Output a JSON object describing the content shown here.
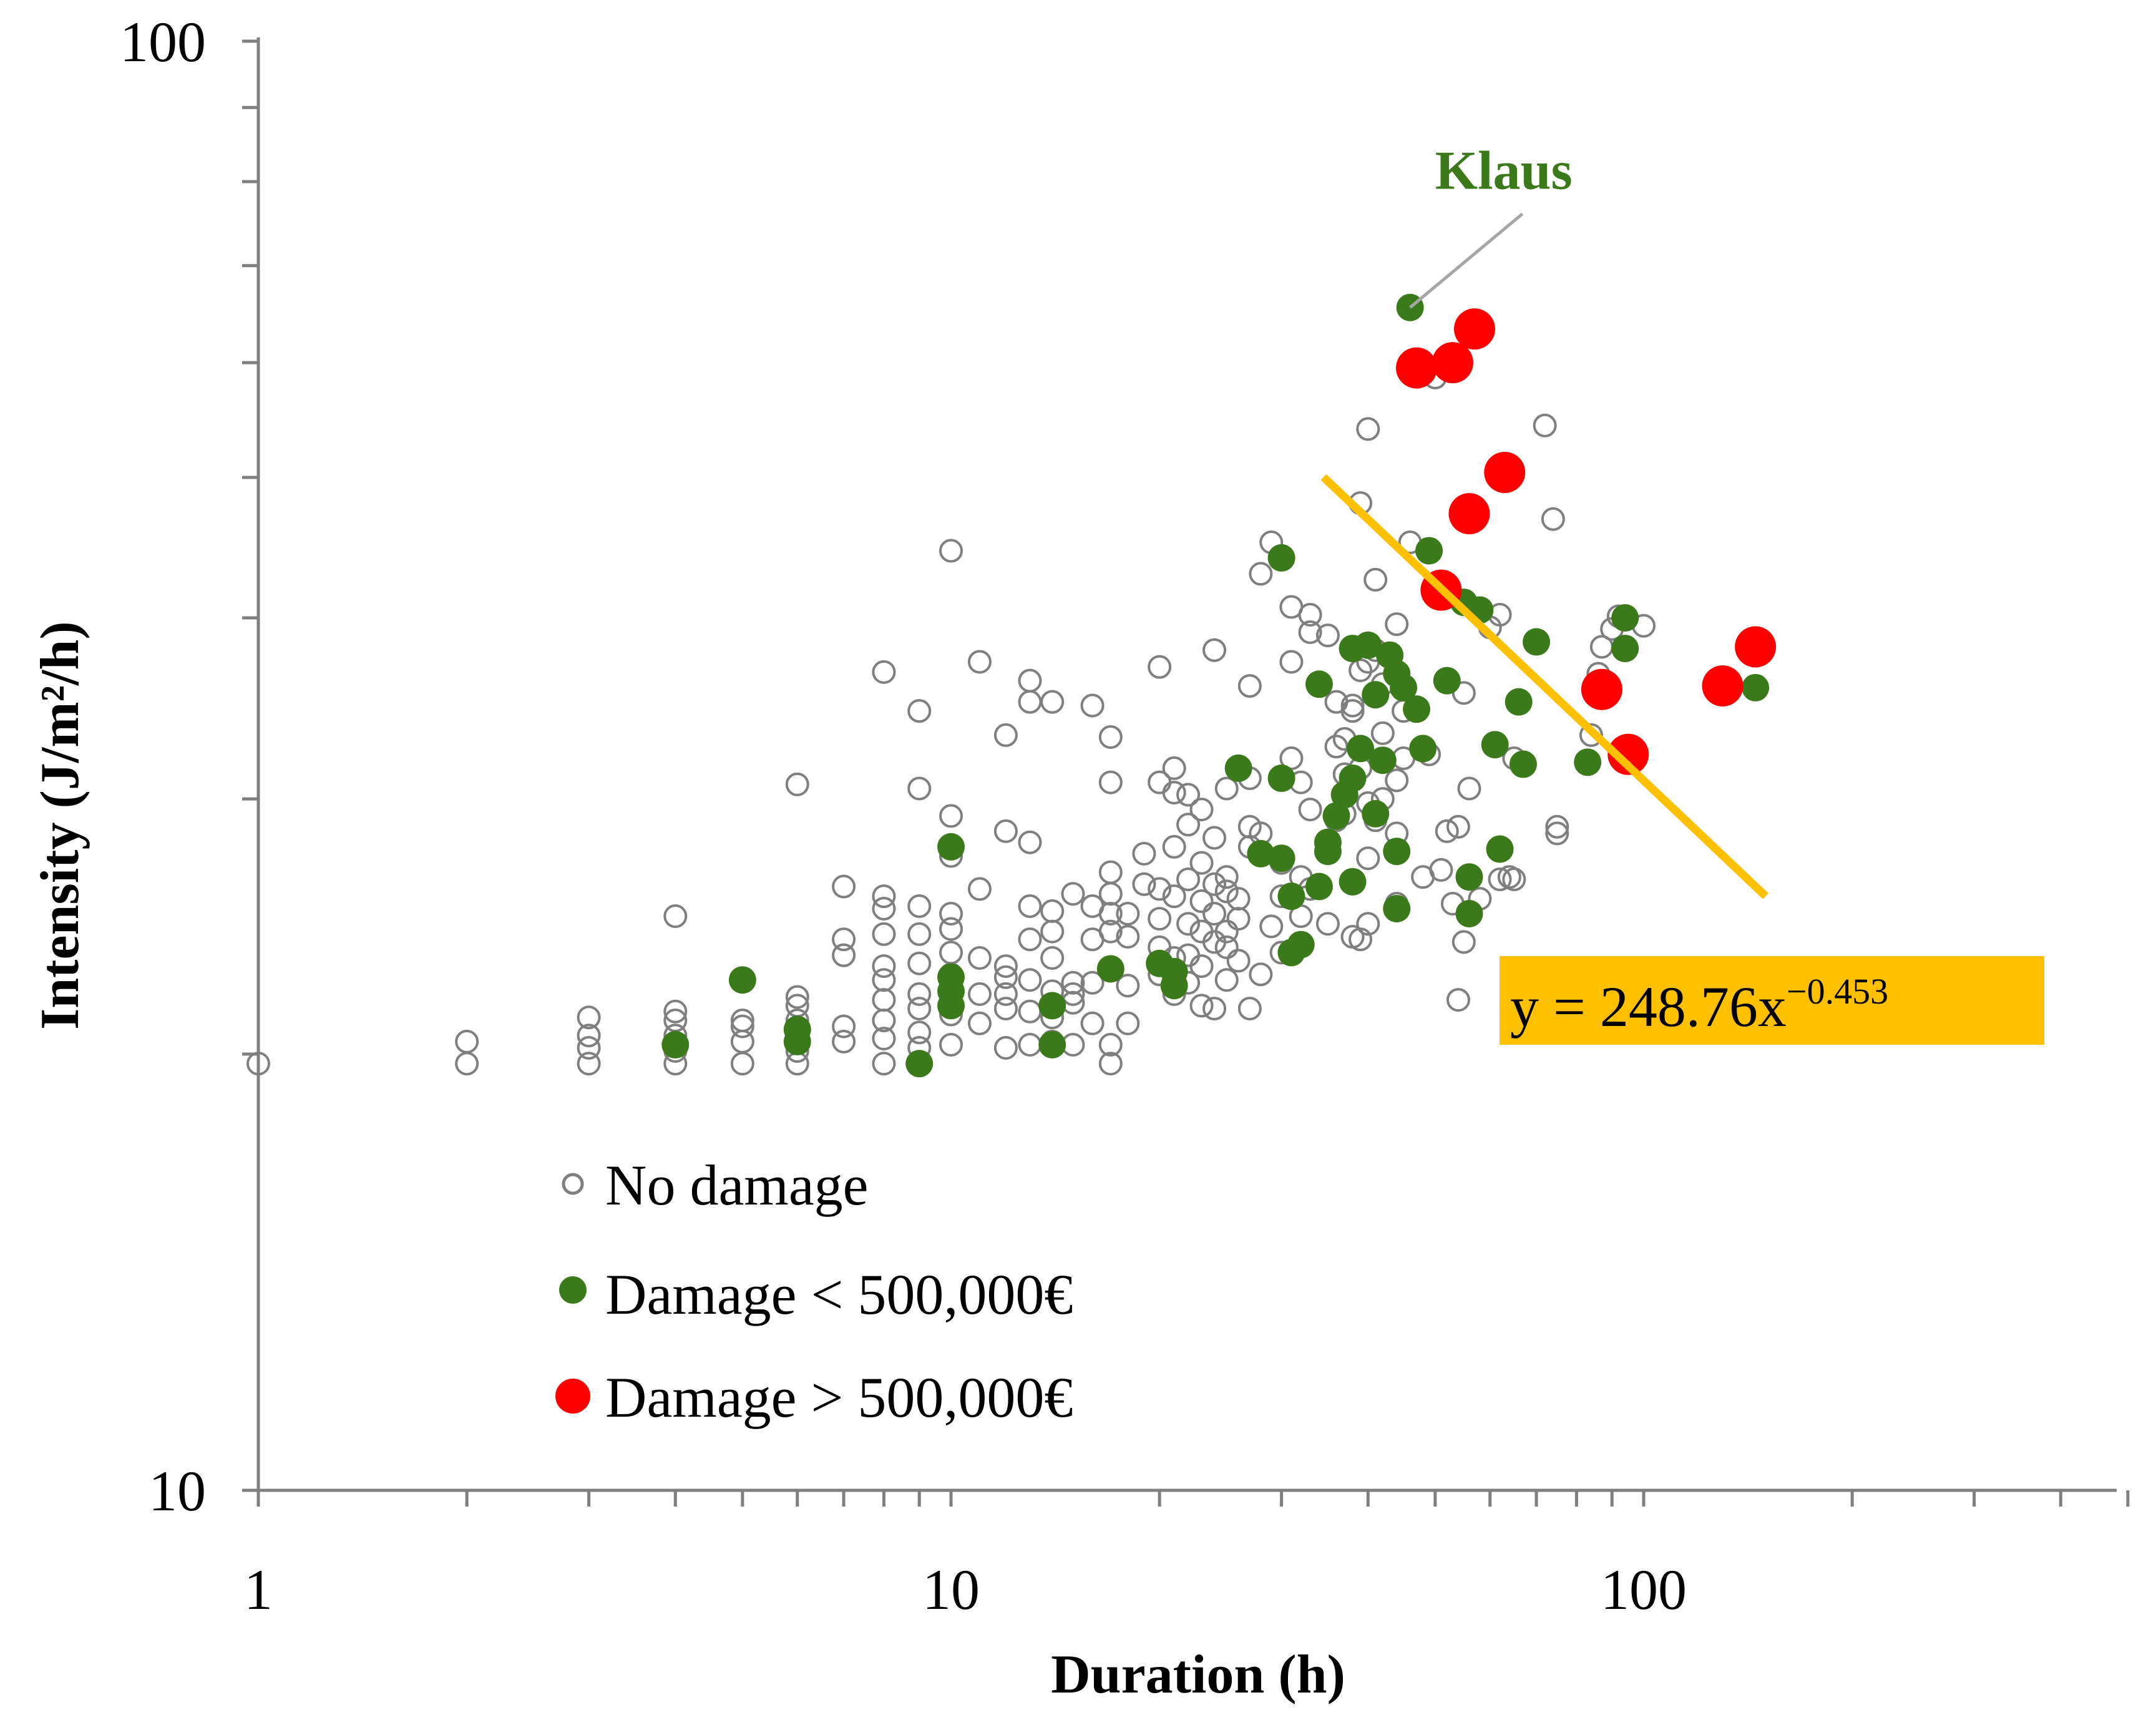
{
  "chart_data": {
    "type": "scatter",
    "xlabel": "Duration (h)",
    "ylabel": "Intensity (J/m²/h)",
    "xscale": "log",
    "yscale": "log",
    "xlim": [
      1,
      700
    ],
    "ylim": [
      10,
      100
    ],
    "x_tick_labels": [
      "1",
      "10",
      "100"
    ],
    "y_tick_labels": [
      "10",
      "100"
    ],
    "grid": false,
    "legend_position": "lower-left",
    "colors": {
      "no_damage": "#7f7f7f",
      "damage_low": "#3a7a1a",
      "damage_high": "#ff0000",
      "trend": "#ffc000",
      "annotation": "#3a7a1a"
    },
    "series": [
      {
        "name": "No damage",
        "marker": "hollow-circle",
        "points": [
          [
            1,
            19.7
          ],
          [
            2,
            19.7
          ],
          [
            2,
            20.4
          ],
          [
            3,
            19.7
          ],
          [
            3,
            20.2
          ],
          [
            3,
            20.6
          ],
          [
            3,
            21.2
          ],
          [
            4,
            19.7
          ],
          [
            4,
            20.1
          ],
          [
            4,
            20.6
          ],
          [
            4,
            21.1
          ],
          [
            4,
            21.4
          ],
          [
            4,
            24.9
          ],
          [
            5,
            19.7
          ],
          [
            5,
            20.4
          ],
          [
            5,
            20.9
          ],
          [
            5,
            21.1
          ],
          [
            6,
            19.7
          ],
          [
            6,
            20.1
          ],
          [
            6,
            20.6
          ],
          [
            6,
            21.1
          ],
          [
            6,
            21.6
          ],
          [
            6,
            21.9
          ],
          [
            6,
            30.7
          ],
          [
            7,
            20.4
          ],
          [
            7,
            20.9
          ],
          [
            7,
            23.4
          ],
          [
            7,
            24.0
          ],
          [
            7,
            26.1
          ],
          [
            8,
            19.7
          ],
          [
            8,
            20.5
          ],
          [
            8,
            21.1
          ],
          [
            8,
            21.8
          ],
          [
            8,
            22.5
          ],
          [
            8,
            23.0
          ],
          [
            8,
            24.2
          ],
          [
            8,
            25.2
          ],
          [
            8,
            25.7
          ],
          [
            8,
            36.7
          ],
          [
            9,
            20.2
          ],
          [
            9,
            20.7
          ],
          [
            9,
            21.5
          ],
          [
            9,
            22.0
          ],
          [
            9,
            23.1
          ],
          [
            9,
            24.2
          ],
          [
            9,
            25.3
          ],
          [
            9,
            30.5
          ],
          [
            9,
            34.5
          ],
          [
            10,
            20.3
          ],
          [
            10,
            21.3
          ],
          [
            10,
            22.7
          ],
          [
            10,
            23.5
          ],
          [
            10,
            24.4
          ],
          [
            10,
            25.0
          ],
          [
            10,
            27.4
          ],
          [
            10,
            29.2
          ],
          [
            10,
            44.5
          ],
          [
            11,
            21.0
          ],
          [
            11,
            22.0
          ],
          [
            11,
            23.3
          ],
          [
            11,
            26.0
          ],
          [
            11,
            37.3
          ],
          [
            12,
            20.2
          ],
          [
            12,
            21.5
          ],
          [
            12,
            22.0
          ],
          [
            12,
            22.6
          ],
          [
            12,
            23.0
          ],
          [
            12,
            28.5
          ],
          [
            12,
            33.2
          ],
          [
            13,
            20.3
          ],
          [
            13,
            21.4
          ],
          [
            13,
            22.5
          ],
          [
            13,
            24.0
          ],
          [
            13,
            25.3
          ],
          [
            13,
            28.0
          ],
          [
            13,
            35.0
          ],
          [
            13,
            36.2
          ],
          [
            14,
            20.4
          ],
          [
            14,
            21.2
          ],
          [
            14,
            22.1
          ],
          [
            14,
            23.3
          ],
          [
            14,
            24.3
          ],
          [
            14,
            25.1
          ],
          [
            14,
            35.0
          ],
          [
            15,
            20.3
          ],
          [
            15,
            21.7
          ],
          [
            15,
            22.0
          ],
          [
            15,
            22.4
          ],
          [
            15,
            25.8
          ],
          [
            16,
            21.0
          ],
          [
            16,
            22.4
          ],
          [
            16,
            24.0
          ],
          [
            16,
            25.3
          ],
          [
            16,
            34.8
          ],
          [
            17,
            19.7
          ],
          [
            17,
            20.3
          ],
          [
            17,
            24.3
          ],
          [
            17,
            25.0
          ],
          [
            17,
            25.8
          ],
          [
            17,
            26.7
          ],
          [
            17,
            30.8
          ],
          [
            17,
            33.1
          ],
          [
            18,
            21.0
          ],
          [
            18,
            22.3
          ],
          [
            18,
            24.1
          ],
          [
            18,
            25.0
          ],
          [
            19,
            26.2
          ],
          [
            19,
            27.5
          ],
          [
            20,
            22.7
          ],
          [
            20,
            23.7
          ],
          [
            20,
            24.8
          ],
          [
            20,
            26.0
          ],
          [
            20,
            30.8
          ],
          [
            20,
            37.0
          ],
          [
            21,
            22.0
          ],
          [
            21,
            23.3
          ],
          [
            21,
            25.7
          ],
          [
            21,
            27.8
          ],
          [
            21,
            30.3
          ],
          [
            21,
            31.5
          ],
          [
            22,
            22.4
          ],
          [
            22,
            23.4
          ],
          [
            22,
            24.6
          ],
          [
            22,
            26.4
          ],
          [
            22,
            28.8
          ],
          [
            22,
            30.2
          ],
          [
            23,
            21.6
          ],
          [
            23,
            23.0
          ],
          [
            23,
            24.3
          ],
          [
            23,
            25.5
          ],
          [
            23,
            27.1
          ],
          [
            23,
            29.5
          ],
          [
            24,
            21.5
          ],
          [
            24,
            23.9
          ],
          [
            24,
            25.0
          ],
          [
            24,
            26.2
          ],
          [
            24,
            28.2
          ],
          [
            24,
            38.0
          ],
          [
            25,
            22.5
          ],
          [
            25,
            23.7
          ],
          [
            25,
            24.3
          ],
          [
            25,
            25.9
          ],
          [
            25,
            26.5
          ],
          [
            25,
            30.5
          ],
          [
            26,
            23.2
          ],
          [
            26,
            24.8
          ],
          [
            26,
            25.6
          ],
          [
            27,
            21.5
          ],
          [
            27,
            27.8
          ],
          [
            27,
            28.7
          ],
          [
            27,
            31.0
          ],
          [
            27,
            35.9
          ],
          [
            28,
            22.7
          ],
          [
            28,
            28.4
          ],
          [
            28,
            42.9
          ],
          [
            29,
            24.5
          ],
          [
            29,
            45.1
          ],
          [
            30,
            23.5
          ],
          [
            30,
            25.7
          ],
          [
            30,
            27.1
          ],
          [
            31,
            32.0
          ],
          [
            31,
            37.3
          ],
          [
            31,
            40.7
          ],
          [
            32,
            24.9
          ],
          [
            32,
            26.5
          ],
          [
            32,
            30.8
          ],
          [
            33,
            26.0
          ],
          [
            33,
            29.5
          ],
          [
            33,
            39.1
          ],
          [
            33,
            40.2
          ],
          [
            35,
            24.6
          ],
          [
            35,
            38.9
          ],
          [
            36,
            29.0
          ],
          [
            36,
            32.6
          ],
          [
            36,
            35.0
          ],
          [
            37,
            29.3
          ],
          [
            37,
            31.2
          ],
          [
            37,
            33.0
          ],
          [
            38,
            24.1
          ],
          [
            38,
            34.5
          ],
          [
            38,
            34.8
          ],
          [
            39,
            24.0
          ],
          [
            39,
            31.5
          ],
          [
            39,
            36.8
          ],
          [
            39,
            48.0
          ],
          [
            40,
            24.6
          ],
          [
            40,
            27.3
          ],
          [
            40,
            29.8
          ],
          [
            40,
            37.3
          ],
          [
            40,
            54.0
          ],
          [
            41,
            29.0
          ],
          [
            41,
            38.0
          ],
          [
            41,
            42.5
          ],
          [
            42,
            30.0
          ],
          [
            42,
            33.3
          ],
          [
            42,
            36.0
          ],
          [
            43,
            37.8
          ],
          [
            44,
            25.4
          ],
          [
            44,
            28.4
          ],
          [
            44,
            30.9
          ],
          [
            44,
            39.6
          ],
          [
            45,
            32.0
          ],
          [
            45,
            34.5
          ],
          [
            46,
            45.1
          ],
          [
            48,
            26.5
          ],
          [
            49,
            32.2
          ],
          [
            50,
            58.6
          ],
          [
            51,
            26.8
          ],
          [
            52,
            28.5
          ],
          [
            53,
            25.4
          ],
          [
            54,
            21.8
          ],
          [
            54,
            28.7
          ],
          [
            55,
            23.9
          ],
          [
            55,
            35.5
          ],
          [
            56,
            30.5
          ],
          [
            58,
            25.6
          ],
          [
            60,
            39.4
          ],
          [
            62,
            26.4
          ],
          [
            62,
            40.2
          ],
          [
            64,
            26.5
          ],
          [
            65,
            26.4
          ],
          [
            65,
            32.0
          ],
          [
            72,
            54.3
          ],
          [
            74,
            46.8
          ],
          [
            75,
            28.4
          ],
          [
            75,
            28.7
          ],
          [
            84,
            33.2
          ],
          [
            86,
            36.6
          ],
          [
            87,
            38.2
          ],
          [
            90,
            39.3
          ],
          [
            92,
            40.1
          ],
          [
            100,
            39.5
          ]
        ]
      },
      {
        "name": "Damage < 500,000€",
        "marker": "filled-circle",
        "points": [
          [
            4,
            20.3
          ],
          [
            5,
            22.5
          ],
          [
            6,
            20.4
          ],
          [
            6,
            20.8
          ],
          [
            9,
            19.7
          ],
          [
            10,
            21.6
          ],
          [
            10,
            22.1
          ],
          [
            10,
            22.6
          ],
          [
            10,
            27.8
          ],
          [
            14,
            20.3
          ],
          [
            14,
            21.6
          ],
          [
            17,
            22.9
          ],
          [
            20,
            23.1
          ],
          [
            21,
            22.3
          ],
          [
            21,
            22.8
          ],
          [
            26,
            31.5
          ],
          [
            28,
            27.5
          ],
          [
            30,
            31.0
          ],
          [
            30,
            27.3
          ],
          [
            30,
            44.0
          ],
          [
            31,
            25.7
          ],
          [
            31,
            23.5
          ],
          [
            32,
            23.8
          ],
          [
            34,
            36.0
          ],
          [
            34,
            26.1
          ],
          [
            35,
            27.6
          ],
          [
            35,
            28.0
          ],
          [
            36,
            29.2
          ],
          [
            37,
            30.2
          ],
          [
            38,
            31.0
          ],
          [
            38,
            26.3
          ],
          [
            38,
            38.1
          ],
          [
            39,
            32.5
          ],
          [
            40,
            38.3
          ],
          [
            41,
            29.3
          ],
          [
            41,
            35.4
          ],
          [
            42,
            31.9
          ],
          [
            43,
            37.7
          ],
          [
            44,
            36.6
          ],
          [
            44,
            27.6
          ],
          [
            44,
            25.2
          ],
          [
            45,
            35.8
          ],
          [
            46,
            65.5
          ],
          [
            47,
            34.6
          ],
          [
            48,
            32.5
          ],
          [
            49,
            44.5
          ],
          [
            52,
            36.2
          ],
          [
            55,
            41.0
          ],
          [
            56,
            26.5
          ],
          [
            56,
            25.0
          ],
          [
            58,
            40.5
          ],
          [
            61,
            32.7
          ],
          [
            62,
            27.7
          ],
          [
            66,
            35.0
          ],
          [
            67,
            31.7
          ],
          [
            70,
            38.5
          ],
          [
            83,
            31.8
          ],
          [
            94,
            40.0
          ],
          [
            94,
            38.1
          ],
          [
            145,
            35.8
          ]
        ]
      },
      {
        "name": "Damage > 500,000€",
        "marker": "filled-circle-large",
        "points": [
          [
            47,
            59.5
          ],
          [
            53,
            60.0
          ],
          [
            57,
            63.3
          ],
          [
            51,
            41.8
          ],
          [
            56,
            47.2
          ],
          [
            63,
            50.4
          ],
          [
            87,
            35.7
          ],
          [
            95,
            32.2
          ],
          [
            130,
            35.9
          ],
          [
            145,
            38.2
          ]
        ]
      }
    ],
    "trendline": {
      "equation": "y = 248.76x",
      "exponent": "−0.453",
      "coefficient": 248.76,
      "power": -0.453,
      "x_range": [
        34.5,
        150
      ]
    },
    "annotations": [
      {
        "text": "Klaus",
        "x": 46,
        "y": 65.5
      }
    ]
  }
}
